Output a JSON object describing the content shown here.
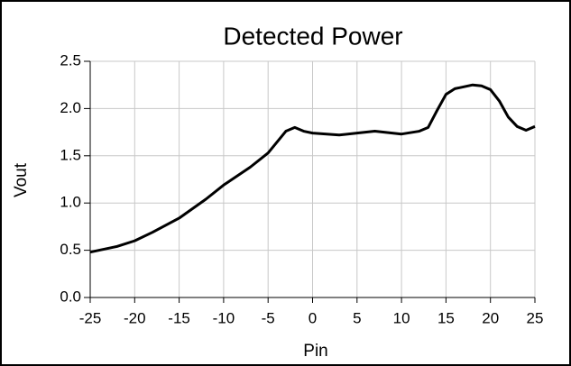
{
  "chart_data": {
    "type": "line",
    "title": "Detected Power",
    "x_label": "Pin",
    "y_label": "Vout",
    "x": [
      -25,
      -22,
      -20,
      -18,
      -15,
      -12,
      -10,
      -7,
      -5,
      -3,
      -2,
      -1,
      0,
      3,
      5,
      7,
      10,
      12,
      13,
      14,
      15,
      16,
      17,
      18,
      19,
      20,
      21,
      22,
      23,
      24,
      25
    ],
    "values": [
      0.48,
      0.54,
      0.6,
      0.69,
      0.84,
      1.04,
      1.19,
      1.38,
      1.53,
      1.76,
      1.8,
      1.76,
      1.74,
      1.72,
      1.74,
      1.76,
      1.73,
      1.76,
      1.8,
      1.98,
      2.15,
      2.21,
      2.23,
      2.25,
      2.24,
      2.2,
      2.08,
      1.91,
      1.81,
      1.77,
      1.81
    ],
    "color": "#000000",
    "xlim": [
      -25,
      25
    ],
    "xticks": [
      -25,
      -20,
      -15,
      -10,
      -5,
      0,
      5,
      10,
      15,
      20,
      25
    ],
    "ylim": [
      0,
      2.5
    ],
    "yticks": [
      {
        "value": 0,
        "label": "0.0"
      },
      0.5,
      {
        "value": 1,
        "label": "1.0"
      },
      1.5,
      {
        "value": 2,
        "label": "2.0"
      },
      2.5
    ],
    "grid": true
  }
}
